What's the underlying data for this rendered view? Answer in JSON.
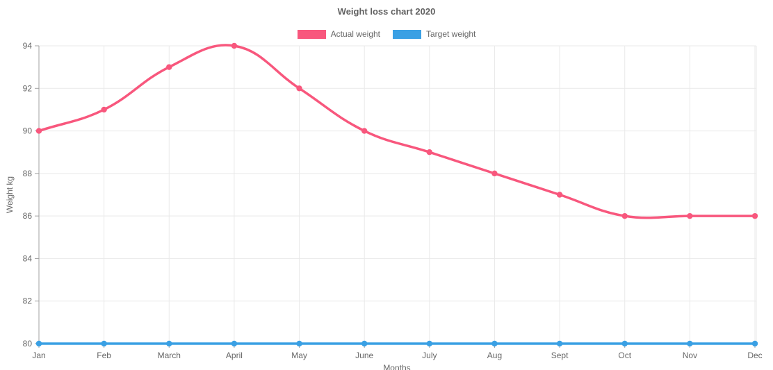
{
  "chart_data": {
    "type": "line",
    "title": "Weight loss chart 2020",
    "x": [
      "Jan",
      "Feb",
      "March",
      "April",
      "May",
      "June",
      "July",
      "Aug",
      "Sept",
      "Oct",
      "Nov",
      "Dec"
    ],
    "series": [
      {
        "name": "Actual weight",
        "color": "#f8577d",
        "values": [
          90,
          91,
          93,
          94,
          92,
          90,
          89,
          88,
          87,
          86,
          86,
          86
        ]
      },
      {
        "name": "Target weight",
        "color": "#3aa0e4",
        "values": [
          80,
          80,
          80,
          80,
          80,
          80,
          80,
          80,
          80,
          80,
          80,
          80
        ]
      }
    ],
    "xlabel": "Months",
    "ylabel": "Weight kg",
    "ylim": [
      80,
      94
    ],
    "ytick_step": 2,
    "yticks": [
      80,
      82,
      84,
      86,
      88,
      90,
      92,
      94
    ],
    "grid": true,
    "legend_position": "top",
    "line_tension": 0.4,
    "colors": {
      "grid_line": "#e9e9e9",
      "axis_line": "#a0a0a0",
      "tick_label": "#666666",
      "title_text": "#616161"
    }
  }
}
